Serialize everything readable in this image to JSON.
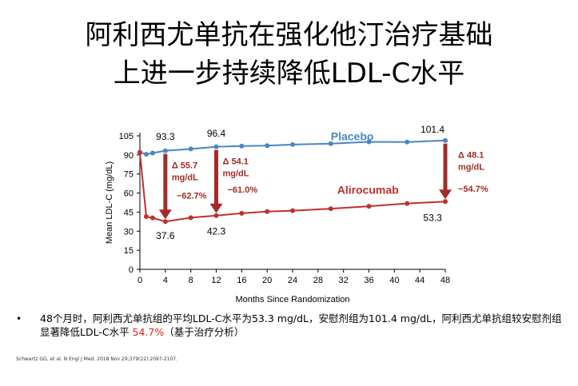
{
  "slide": {
    "title_line1": "阿利西尤单抗在强化他汀治疗基础",
    "title_line2": "上进一步持续降低LDL-C水平",
    "bullet_marker": "•",
    "bullet_text_part1": "48个月时，阿利西尤单抗组的平均LDL-C水平为53.3 mg/dL，安慰剂组为101.4 mg/dL，阿利西尤单抗组较安慰剂组显著降低LDL-C水平 ",
    "bullet_highlight": "54.7%",
    "bullet_text_part2": "（基于治疗分析）",
    "reference": "Schwartz GG, et al. N Engl J Med. 2018 Nov 29;379(22):2097-2107.",
    "colors": {
      "placebo": "#4a86c5",
      "alirocumab": "#c0302b",
      "arrow": "#a52a25",
      "highlight": "#e0201a"
    }
  },
  "chart_data": {
    "type": "line",
    "xlabel": "Months Since Randomization",
    "ylabel": "Mean LDL-C (mg/dL)",
    "xlim": [
      0,
      48
    ],
    "ylim": [
      0,
      105
    ],
    "xticks": [
      0,
      4,
      8,
      12,
      16,
      20,
      24,
      28,
      32,
      36,
      40,
      44,
      48
    ],
    "yticks": [
      0,
      15,
      30,
      45,
      60,
      75,
      90,
      105
    ],
    "series": [
      {
        "name": "Placebo",
        "color": "#4a86c5",
        "x": [
          0,
          1,
          2,
          4,
          8,
          12,
          16,
          20,
          24,
          30,
          36,
          42,
          48
        ],
        "y": [
          92,
          90.5,
          91.5,
          93.3,
          94.7,
          96.4,
          97,
          97.3,
          98.2,
          98.9,
          100.3,
          100.1,
          101.4
        ]
      },
      {
        "name": "Alirocumab",
        "color": "#c0302b",
        "x": [
          0,
          1,
          2,
          4,
          8,
          12,
          16,
          20,
          24,
          30,
          36,
          42,
          48
        ],
        "y": [
          92,
          41.5,
          40.5,
          37.6,
          40.6,
          42.3,
          44.1,
          45.4,
          46.1,
          47.7,
          49.6,
          51.8,
          53.3
        ]
      }
    ],
    "point_labels": [
      {
        "x": 4,
        "text": "93.3"
      },
      {
        "x": 12,
        "text": "96.4"
      },
      {
        "x": 48,
        "text": "101.4"
      },
      {
        "x": 4,
        "text": "37.6"
      },
      {
        "x": 12,
        "text": "42.3"
      },
      {
        "x": 48,
        "text": "53.3"
      }
    ],
    "annotations": [
      {
        "x": 4,
        "from": 93.3,
        "to": 37.6,
        "delta": "Δ 55.7",
        "unit": "mg/dL",
        "pct": "−62.7%"
      },
      {
        "x": 12,
        "from": 96.4,
        "to": 42.3,
        "delta": "Δ 54.1",
        "unit": "mg/dL",
        "pct": "−61.0%"
      },
      {
        "x": 48,
        "from": 101.4,
        "to": 53.3,
        "delta": "Δ 48.1",
        "unit": "mg/dL",
        "pct": "−54.7%"
      }
    ]
  }
}
